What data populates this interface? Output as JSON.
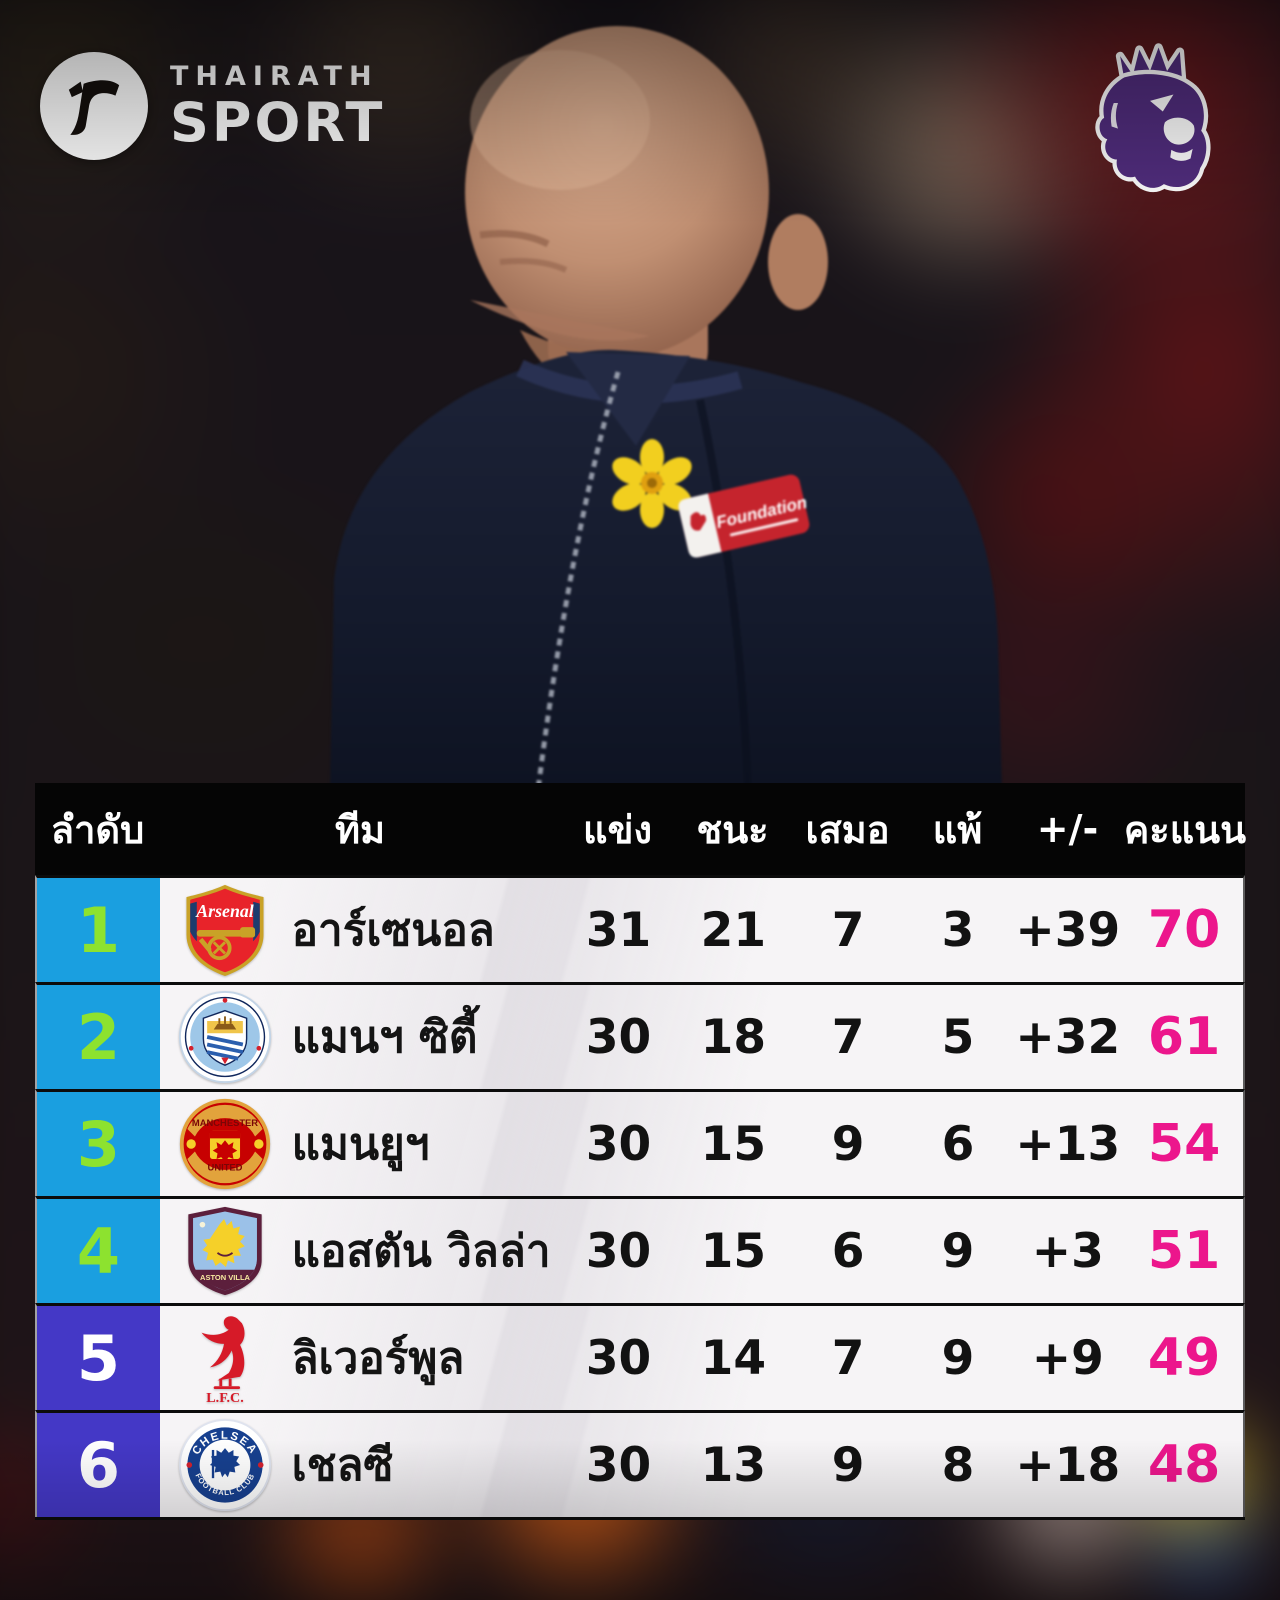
{
  "brand": {
    "line1": "THAIRATH",
    "line2": "SPORT"
  },
  "photo": {
    "foundation_label": "Foundation"
  },
  "table": {
    "headers": {
      "rank": "ลำดับ",
      "team": "ทีม",
      "played": "แข่ง",
      "won": "ชนะ",
      "drawn": "เสมอ",
      "lost": "แพ้",
      "diff": "+/-",
      "points": "คะแนน"
    },
    "rows": [
      {
        "rank": "1",
        "team": "อาร์เซนอล",
        "badge": "arsenal",
        "played": "31",
        "won": "21",
        "drawn": "7",
        "lost": "3",
        "diff": "+39",
        "points": "70",
        "zone": "top"
      },
      {
        "rank": "2",
        "team": "แมนฯ ซิตี้",
        "badge": "man-city",
        "played": "30",
        "won": "18",
        "drawn": "7",
        "lost": "5",
        "diff": "+32",
        "points": "61",
        "zone": "top"
      },
      {
        "rank": "3",
        "team": "แมนยูฯ",
        "badge": "man-united",
        "played": "30",
        "won": "15",
        "drawn": "9",
        "lost": "6",
        "diff": "+13",
        "points": "54",
        "zone": "top"
      },
      {
        "rank": "4",
        "team": "แอสตัน วิลล่า",
        "badge": "aston-villa",
        "played": "30",
        "won": "15",
        "drawn": "6",
        "lost": "9",
        "diff": "+3",
        "points": "51",
        "zone": "top"
      },
      {
        "rank": "5",
        "team": "ลิเวอร์พูล",
        "badge": "liverpool",
        "played": "30",
        "won": "14",
        "drawn": "7",
        "lost": "9",
        "diff": "+9",
        "points": "49",
        "zone": "bottom"
      },
      {
        "rank": "6",
        "team": "เชลซี",
        "badge": "chelsea",
        "played": "30",
        "won": "13",
        "drawn": "9",
        "lost": "8",
        "diff": "+18",
        "points": "48",
        "zone": "bottom"
      }
    ]
  },
  "colors": {
    "rank_top_bg": "#1A9FE0",
    "rank_top_text": "#8DE22F",
    "rank_bottom_bg": "#4438C6",
    "rank_bottom_text": "#FFFFFF",
    "points_text": "#EC168C",
    "header_bg": "#050505",
    "header_text": "#FFFFFF",
    "premier_league_purple": "#512D7E"
  },
  "chart_data": {
    "type": "table",
    "columns": [
      "ลำดับ",
      "ทีม",
      "แข่ง",
      "ชนะ",
      "เสมอ",
      "แพ้",
      "+/-",
      "คะแนน"
    ],
    "rows": [
      [
        "1",
        "อาร์เซนอล",
        "31",
        "21",
        "7",
        "3",
        "+39",
        "70"
      ],
      [
        "2",
        "แมนฯ ซิตี้",
        "30",
        "18",
        "7",
        "5",
        "+32",
        "61"
      ],
      [
        "3",
        "แมนยูฯ",
        "30",
        "15",
        "9",
        "6",
        "+13",
        "54"
      ],
      [
        "4",
        "แอสตัน วิลล่า",
        "30",
        "15",
        "6",
        "9",
        "+3",
        "51"
      ],
      [
        "5",
        "ลิเวอร์พูล",
        "30",
        "14",
        "7",
        "9",
        "+9",
        "49"
      ],
      [
        "6",
        "เชลซี",
        "30",
        "13",
        "9",
        "8",
        "+18",
        "48"
      ]
    ]
  }
}
